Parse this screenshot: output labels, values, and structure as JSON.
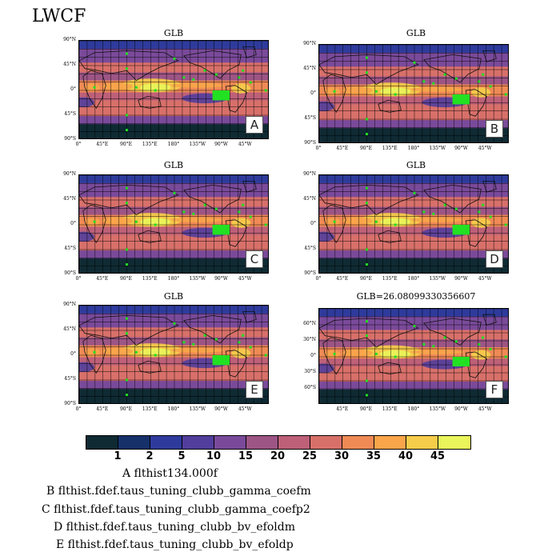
{
  "title": "LWCF",
  "panels": [
    {
      "id": "A",
      "title": "GLB",
      "yticks": [
        "90°N",
        "45°N",
        "0°",
        "45°S",
        "90°S"
      ],
      "xticks": [
        "0°",
        "45°E",
        "90°E",
        "135°E",
        "180°",
        "135°W",
        "90°W",
        "45°W"
      ]
    },
    {
      "id": "B",
      "title": "GLB",
      "yticks": [
        "90°N",
        "45°N",
        "0°",
        "45°S",
        "90°S"
      ],
      "xticks": [
        "0°",
        "45°E",
        "90°E",
        "135°E",
        "180°",
        "135°W",
        "90°W",
        "45°W"
      ]
    },
    {
      "id": "C",
      "title": "GLB",
      "yticks": [
        "90°N",
        "45°N",
        "0°",
        "45°S",
        "90°S"
      ],
      "xticks": [
        "0°",
        "45°E",
        "90°E",
        "135°E",
        "180°",
        "135°W",
        "90°W",
        "45°W"
      ]
    },
    {
      "id": "D",
      "title": "GLB",
      "yticks": [
        "90°N",
        "45°N",
        "0°",
        "45°S",
        "90°S"
      ],
      "xticks": [
        "0°",
        "45°E",
        "90°E",
        "135°E",
        "180°",
        "135°W",
        "90°W",
        "45°W"
      ]
    },
    {
      "id": "E",
      "title": "GLB",
      "yticks": [
        "90°N",
        "45°N",
        "0°",
        "45°S",
        "90°S"
      ],
      "xticks": [
        "0°",
        "45°E",
        "90°E",
        "135°E",
        "180°",
        "135°W",
        "90°W",
        "45°W"
      ]
    },
    {
      "id": "F",
      "title": "GLB=26.08099330356607",
      "yticks": [
        "60°N",
        "30°N",
        "0°",
        "30°S",
        "60°S"
      ],
      "xticks": [
        "45°E",
        "90°E",
        "135°E",
        "180°",
        "135°W",
        "90°W",
        "45°W"
      ]
    }
  ],
  "colorbar": {
    "colors": [
      "#0f2a33",
      "#16306a",
      "#2e3b9c",
      "#523e9c",
      "#7a4a9a",
      "#9c5585",
      "#bd6078",
      "#d8706a",
      "#ef8a55",
      "#f9a54a",
      "#f6cd4a",
      "#e9f55a"
    ],
    "labels": [
      "1",
      "2",
      "5",
      "10",
      "15",
      "20",
      "25",
      "30",
      "35",
      "40",
      "45"
    ]
  },
  "legend": [
    "A  flthist134.000f",
    "B  flthist.fdef.taus_tuning_clubb_gamma_coefm",
    "C  flthist.fdef.taus_tuning_clubb_gamma_coefp2",
    "D  flthist.fdef.taus_tuning_clubb_bv_efoldm",
    "E  flthist.fdef.taus_tuning_clubb_bv_efoldp"
  ]
}
